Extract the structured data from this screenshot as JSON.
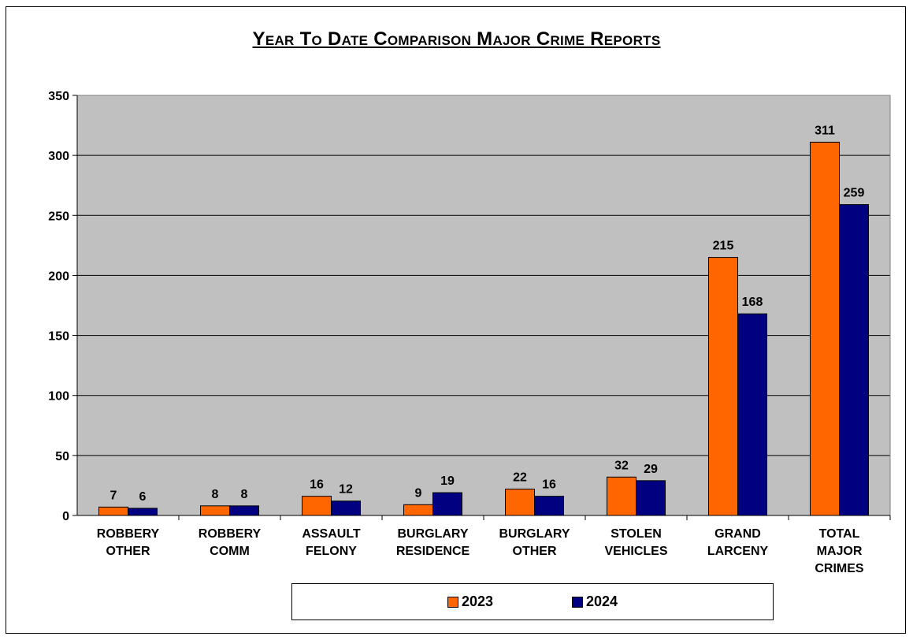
{
  "chart_data": {
    "type": "bar",
    "title": "Year To Date Comparison Major Crime Reports",
    "categories": [
      [
        "ROBBERY",
        "OTHER"
      ],
      [
        "ROBBERY",
        "COMM"
      ],
      [
        "ASSAULT",
        "FELONY"
      ],
      [
        "BURGLARY",
        "RESIDENCE"
      ],
      [
        "BURGLARY",
        "OTHER"
      ],
      [
        "STOLEN",
        "VEHICLES"
      ],
      [
        "GRAND",
        "LARCENY"
      ],
      [
        "TOTAL",
        "MAJOR",
        "CRIMES"
      ]
    ],
    "series": [
      {
        "name": "2023",
        "color": "#ff6600",
        "values": [
          7,
          8,
          16,
          9,
          22,
          32,
          215,
          311
        ]
      },
      {
        "name": "2024",
        "color": "#000080",
        "values": [
          6,
          8,
          12,
          19,
          16,
          29,
          168,
          259
        ]
      }
    ],
    "ylim": [
      0,
      350
    ],
    "yticks": [
      0,
      50,
      100,
      150,
      200,
      250,
      300,
      350
    ],
    "grid": true,
    "plot_background": "#c0c0c0",
    "legend_position": "bottom"
  }
}
